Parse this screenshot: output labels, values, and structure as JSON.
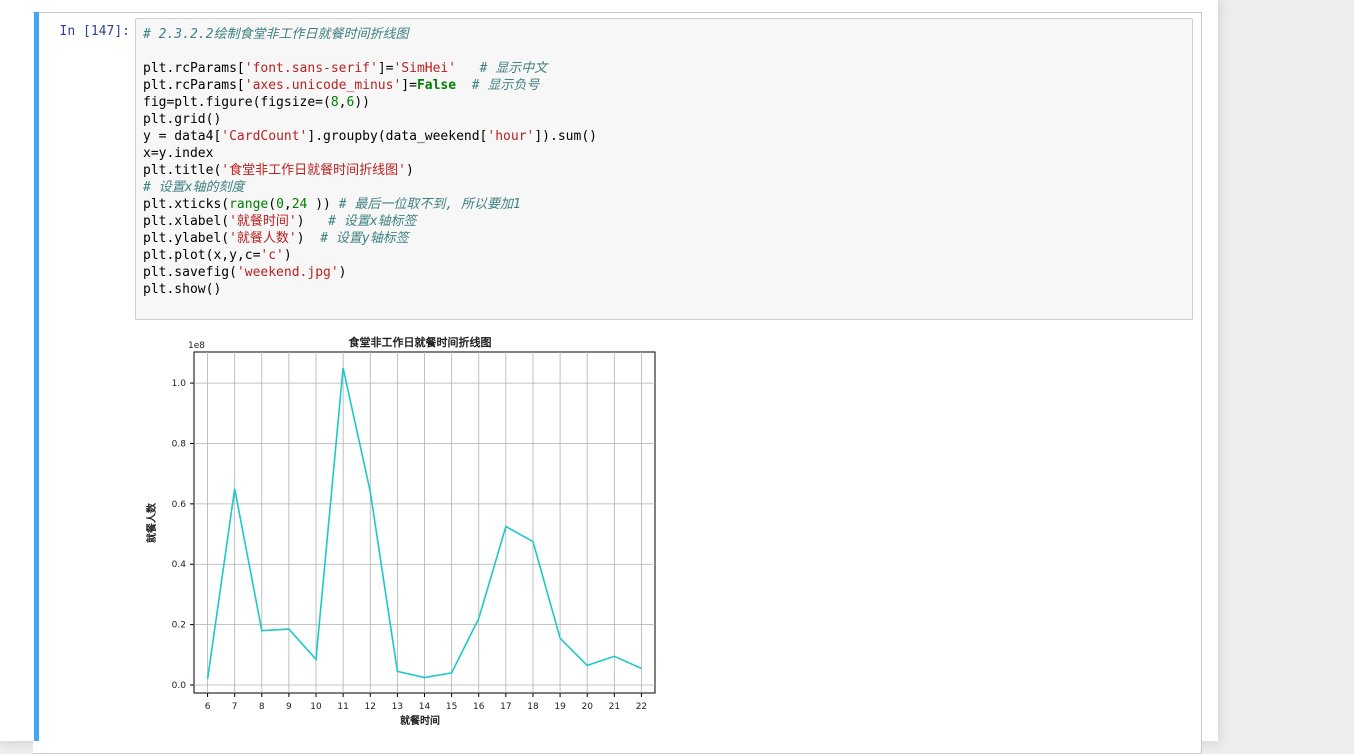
{
  "cell": {
    "prompt": "In  [147]:",
    "code_lines": [
      [
        {
          "t": "# 2.3.2.2绘制食堂非工作日就餐时间折线图",
          "c": "cm"
        }
      ],
      [],
      [
        {
          "t": "plt.rcParams["
        },
        {
          "t": "'font.sans-serif'",
          "c": "st"
        },
        {
          "t": "]="
        },
        {
          "t": "'SimHei'",
          "c": "st"
        },
        {
          "t": "   "
        },
        {
          "t": "# 显示中文",
          "c": "cm"
        }
      ],
      [
        {
          "t": "plt.rcParams["
        },
        {
          "t": "'axes.unicode_minus'",
          "c": "st"
        },
        {
          "t": "]="
        },
        {
          "t": "False",
          "c": "kw"
        },
        {
          "t": "  "
        },
        {
          "t": "# 显示负号",
          "c": "cm"
        }
      ],
      [
        {
          "t": "fig=plt.figure(figsize=("
        },
        {
          "t": "8",
          "c": "nm"
        },
        {
          "t": ","
        },
        {
          "t": "6",
          "c": "nm"
        },
        {
          "t": "))"
        }
      ],
      [
        {
          "t": "plt.grid()"
        }
      ],
      [
        {
          "t": "y = data4["
        },
        {
          "t": "'CardCount'",
          "c": "st"
        },
        {
          "t": "].groupby(data_weekend["
        },
        {
          "t": "'hour'",
          "c": "st"
        },
        {
          "t": "]).sum()"
        }
      ],
      [
        {
          "t": "x=y.index"
        }
      ],
      [
        {
          "t": "plt.title("
        },
        {
          "t": "'食堂非工作日就餐时间折线图'",
          "c": "st"
        },
        {
          "t": ")"
        }
      ],
      [
        {
          "t": "# 设置x轴的刻度",
          "c": "cm"
        }
      ],
      [
        {
          "t": "plt.xticks("
        },
        {
          "t": "range",
          "c": "nm"
        },
        {
          "t": "("
        },
        {
          "t": "0",
          "c": "nm"
        },
        {
          "t": ","
        },
        {
          "t": "24",
          "c": "nm"
        },
        {
          "t": " )) "
        },
        {
          "t": "# 最后一位取不到, 所以要加1",
          "c": "cm"
        }
      ],
      [
        {
          "t": "plt.xlabel("
        },
        {
          "t": "'就餐时间'",
          "c": "st"
        },
        {
          "t": ")   "
        },
        {
          "t": "# 设置x轴标签",
          "c": "cm"
        }
      ],
      [
        {
          "t": "plt.ylabel("
        },
        {
          "t": "'就餐人数'",
          "c": "st"
        },
        {
          "t": ")  "
        },
        {
          "t": "# 设置y轴标签",
          "c": "cm"
        }
      ],
      [
        {
          "t": "plt.plot(x,y,c="
        },
        {
          "t": "'c'",
          "c": "st"
        },
        {
          "t": ")"
        }
      ],
      [
        {
          "t": "plt.savefig("
        },
        {
          "t": "'weekend.jpg'",
          "c": "st"
        },
        {
          "t": ")"
        }
      ],
      [
        {
          "t": "plt.show()"
        }
      ]
    ]
  },
  "chart_data": {
    "type": "line",
    "title": "食堂非工作日就餐时间折线图",
    "xlabel": "就餐时间",
    "ylabel": "就餐人数",
    "y_offset_label": "1e8",
    "x": [
      6,
      7,
      8,
      9,
      10,
      11,
      12,
      13,
      14,
      15,
      16,
      17,
      18,
      19,
      20,
      21,
      22
    ],
    "y": [
      0.02,
      0.65,
      0.18,
      0.185,
      0.085,
      1.05,
      0.64,
      0.045,
      0.025,
      0.04,
      0.22,
      0.525,
      0.475,
      0.155,
      0.065,
      0.095,
      0.055
    ],
    "xticks": [
      "6",
      "7",
      "8",
      "9",
      "10",
      "11",
      "12",
      "13",
      "14",
      "15",
      "16",
      "17",
      "18",
      "19",
      "20",
      "21",
      "22"
    ],
    "yticks": [
      "0.0",
      "0.2",
      "0.4",
      "0.6",
      "0.8",
      "1.0"
    ],
    "ytick_values": [
      0.0,
      0.2,
      0.4,
      0.6,
      0.8,
      1.0
    ],
    "xlim": [
      5.5,
      22.5
    ],
    "ylim": [
      -0.0265,
      1.103
    ],
    "grid": true,
    "line_color": "#1ec8c8",
    "grid_color": "#b0b0b0"
  }
}
